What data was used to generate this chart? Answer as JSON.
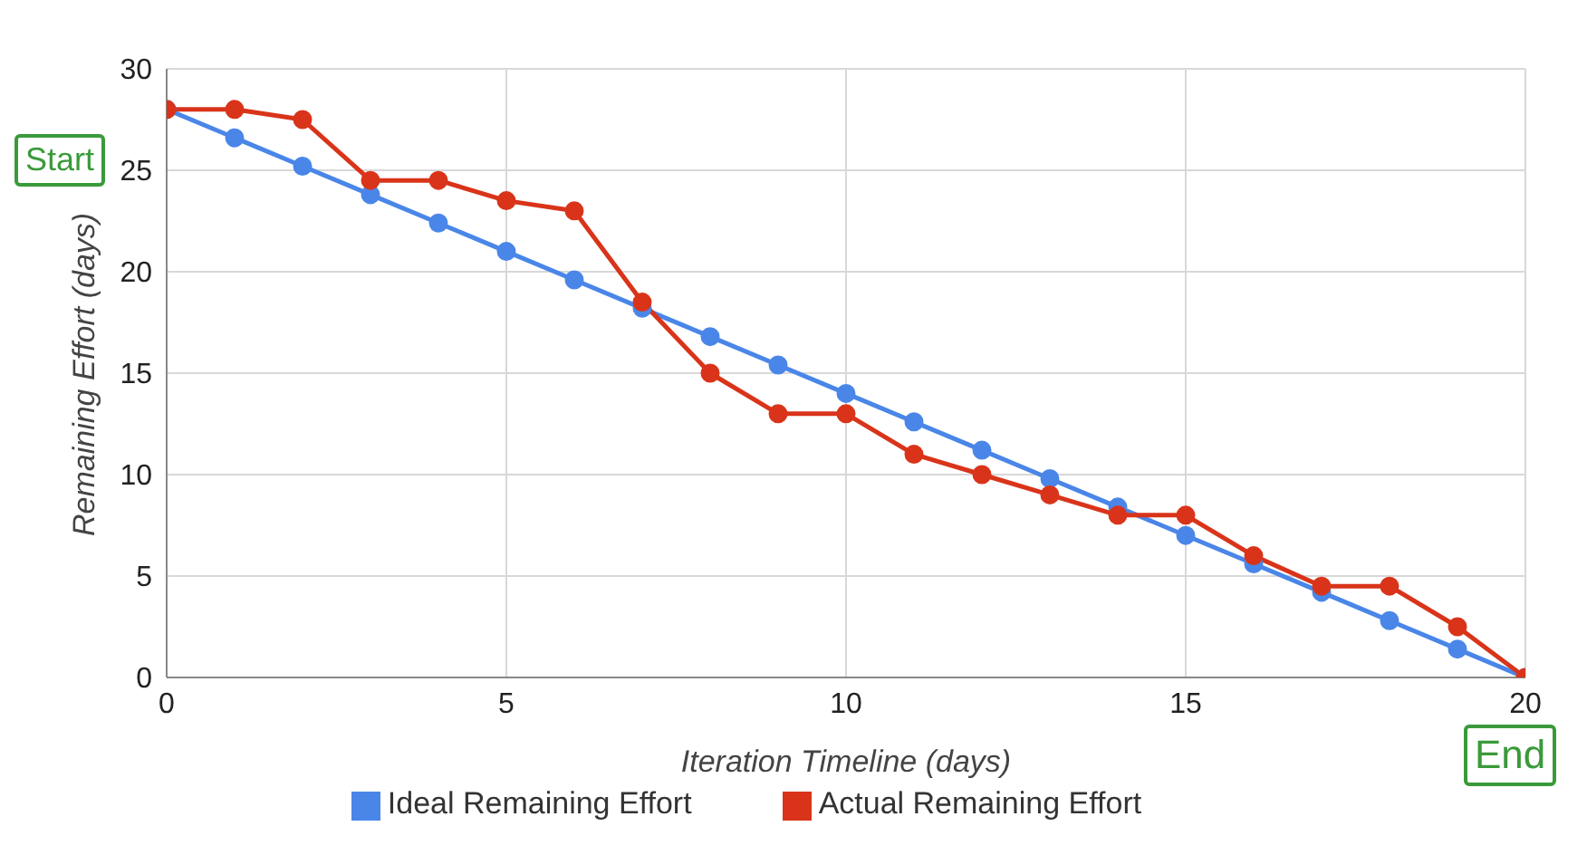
{
  "chart_data": {
    "type": "line",
    "xlabel": "Iteration Timeline (days)",
    "ylabel": "Remaining Effort (days)",
    "x": [
      0,
      1,
      2,
      3,
      4,
      5,
      6,
      7,
      8,
      9,
      10,
      11,
      12,
      13,
      14,
      15,
      16,
      17,
      18,
      19,
      20
    ],
    "series": [
      {
        "name": "Ideal Remaining Effort",
        "color": "#4a86e8",
        "values": [
          28,
          26.6,
          25.2,
          23.8,
          22.4,
          21,
          19.6,
          18.2,
          16.8,
          15.4,
          14,
          12.6,
          11.2,
          9.8,
          8.4,
          7,
          5.6,
          4.2,
          2.8,
          1.4,
          0
        ]
      },
      {
        "name": "Actual Remaining Effort",
        "color": "#d9341a",
        "values": [
          28,
          28,
          27.5,
          24.5,
          24.5,
          23.5,
          23,
          18.5,
          15,
          13,
          13,
          11,
          10,
          9,
          8,
          8,
          6,
          4.5,
          4.5,
          2.5,
          0
        ]
      }
    ],
    "xlim": [
      0,
      20
    ],
    "xticks": [
      0,
      5,
      10,
      15,
      20
    ],
    "ylim": [
      0,
      30
    ],
    "yticks": [
      0,
      5,
      10,
      15,
      20,
      25,
      30
    ],
    "grid": true,
    "legend": "bottom",
    "marker": "circle",
    "line_style": "solid",
    "annotations": [
      "Start",
      "End"
    ]
  }
}
